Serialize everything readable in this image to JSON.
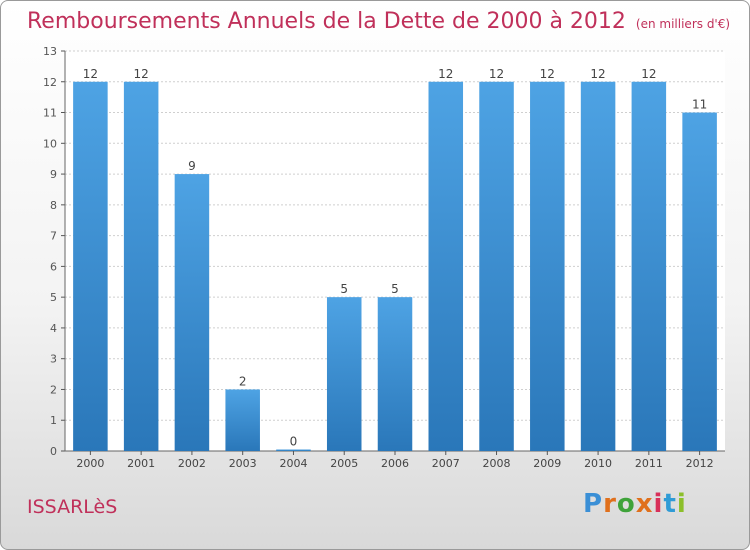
{
  "title": "Remboursements Annuels de la Dette de 2000 à 2012",
  "unit": "(en milliers d'€)",
  "commune": "ISSARLèS",
  "logo": {
    "letters": [
      "P",
      "r",
      "o",
      "x",
      "i",
      "t",
      "i"
    ],
    "colors": [
      "#3a8fd6",
      "#e0701c",
      "#3fa33a",
      "#e0701c",
      "#d8305a",
      "#2f9bd6",
      "#8cbf2a"
    ]
  },
  "colors": {
    "bar": "#4ea3e4",
    "bar_dark": "#2a77b9",
    "title": "#c0305a"
  },
  "chart_data": {
    "type": "bar",
    "categories": [
      "2000",
      "2001",
      "2002",
      "2003",
      "2004",
      "2005",
      "2006",
      "2007",
      "2008",
      "2009",
      "2010",
      "2011",
      "2012"
    ],
    "values": [
      12,
      12,
      9,
      2,
      0,
      5,
      5,
      12,
      12,
      12,
      12,
      12,
      11
    ],
    "ylim": [
      0,
      13
    ],
    "yticks": [
      "0",
      "1",
      "2",
      "3",
      "4",
      "5",
      "6",
      "7",
      "8",
      "9",
      "10",
      "11",
      "12",
      "13"
    ],
    "grid": true
  }
}
